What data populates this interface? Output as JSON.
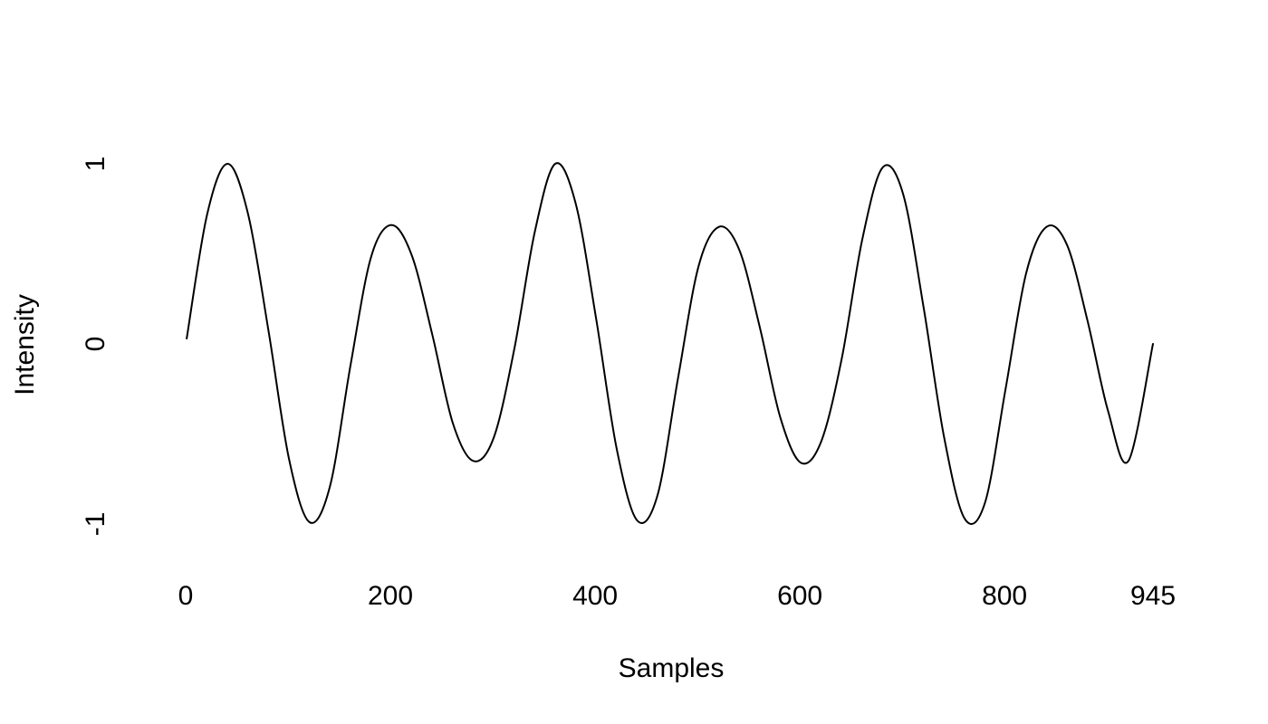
{
  "chart_data": {
    "type": "line",
    "title": "",
    "xlabel": "Samples",
    "ylabel": "Intensity",
    "xlim": [
      1,
      945
    ],
    "ylim": [
      -1,
      1
    ],
    "x_ticks": [
      0,
      200,
      400,
      600,
      800,
      945
    ],
    "x_tick_labels": [
      "0",
      "200",
      "400",
      "600",
      "800",
      "945"
    ],
    "y_ticks": [
      -1,
      0,
      1
    ],
    "y_tick_labels": [
      "-1",
      "0",
      "1"
    ],
    "grid": false,
    "legend": "none",
    "series": [
      {
        "color": "#000000",
        "x": [
          1,
          21,
          41,
          61,
          81,
          101,
          121,
          141,
          161,
          181,
          201,
          221,
          241,
          261,
          281,
          301,
          321,
          341,
          361,
          381,
          401,
          421,
          441,
          461,
          481,
          501,
          521,
          541,
          561,
          581,
          601,
          621,
          641,
          661,
          681,
          701,
          721,
          741,
          761,
          781,
          801,
          821,
          841,
          861,
          881,
          901,
          921,
          945
        ],
        "y": [
          0.03,
          0.72,
          1.0,
          0.72,
          0.07,
          -0.64,
          -0.99,
          -0.79,
          -0.12,
          0.48,
          0.66,
          0.49,
          0.05,
          -0.44,
          -0.65,
          -0.52,
          -0.03,
          0.62,
          1.0,
          0.78,
          0.14,
          -0.58,
          -0.98,
          -0.84,
          -0.19,
          0.43,
          0.65,
          0.52,
          0.09,
          -0.41,
          -0.66,
          -0.54,
          -0.08,
          0.58,
          0.98,
          0.83,
          0.2,
          -0.52,
          -0.97,
          -0.88,
          -0.25,
          0.39,
          0.65,
          0.55,
          0.13,
          -0.37,
          -0.65,
          0.0
        ]
      }
    ]
  }
}
